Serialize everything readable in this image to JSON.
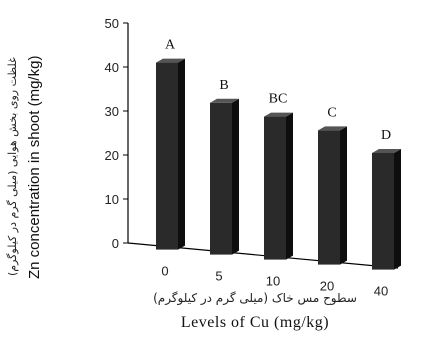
{
  "chart_data": {
    "type": "bar",
    "categories": [
      "0",
      "5",
      "10",
      "20",
      "40"
    ],
    "values": [
      42.5,
      34.5,
      32.5,
      30.5,
      26.5
    ],
    "significance_letters": [
      "A",
      "B",
      "BC",
      "C",
      "D"
    ],
    "xlabel": "Levels of Cu (mg/kg)",
    "xlabel_fa": "سطوح مس خاک (میلی گرم در کیلوگرم)",
    "ylabel": "Zn concentration in shoot (mg/kg)",
    "ylabel_fa": "غلظت روی بخش هوایی (میلی گرم در کیلوگرم)",
    "ylim": [
      0,
      50
    ],
    "yticks": [
      "0",
      "10",
      "20",
      "30",
      "40",
      "50"
    ],
    "grid": false,
    "legend": "none",
    "colors": {
      "bar_front": "#2a2a2a",
      "bar_side": "#0e0e0e",
      "bar_top": "#555555",
      "axis": "#000000"
    }
  }
}
